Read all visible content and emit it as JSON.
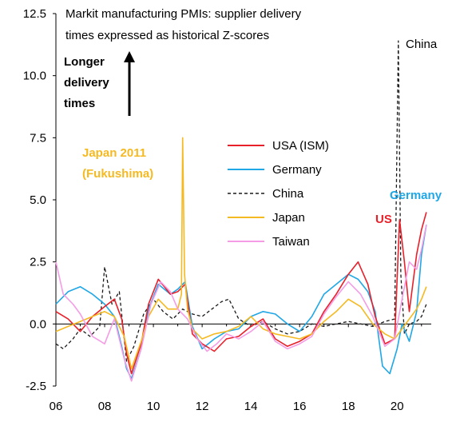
{
  "chart_data": {
    "type": "line",
    "title": "Markit manufacturing PMIs: supplier delivery times expressed as historical Z-scores",
    "title_lines": [
      "Markit manufacturing PMIs: supplier delivery",
      "times expressed as historical Z-scores"
    ],
    "ylim": [
      -2.5,
      12.5
    ],
    "y_ticks": [
      "12.5",
      "10.0",
      "7.5",
      "5.0",
      "2.5",
      "0.0",
      "-2.5"
    ],
    "y_tick_values": [
      12.5,
      10.0,
      7.5,
      5.0,
      2.5,
      0.0,
      -2.5
    ],
    "xlim": [
      2006.0,
      2021.4
    ],
    "x_ticks": [
      "06",
      "08",
      "10",
      "12",
      "14",
      "16",
      "18",
      "20"
    ],
    "x_tick_values": [
      2006,
      2008,
      2010,
      2012,
      2014,
      2016,
      2018,
      2020
    ],
    "legend_position": "middle",
    "arrow_label_lines": [
      "Longer",
      "delivery",
      "times"
    ],
    "annotations": {
      "japan_lines": [
        "Japan 2011",
        "(Fukushima)"
      ],
      "china": "China",
      "germany": "Germany",
      "us": "US"
    },
    "series": [
      {
        "name": "USA (ISM)",
        "color": "#e8202a",
        "dash": false,
        "x": [
          2006.0,
          2006.5,
          2007.0,
          2007.5,
          2008.0,
          2008.4,
          2008.7,
          2008.9,
          2009.1,
          2009.5,
          2009.8,
          2010.2,
          2010.7,
          2011.0,
          2011.3,
          2011.6,
          2012.0,
          2012.5,
          2013.0,
          2013.5,
          2014.0,
          2014.5,
          2015.0,
          2015.5,
          2016.0,
          2016.5,
          2017.0,
          2017.5,
          2018.0,
          2018.4,
          2018.8,
          2019.1,
          2019.5,
          2019.9,
          2020.1,
          2020.3,
          2020.5,
          2020.8,
          2021.0,
          2021.2
        ],
        "y": [
          0.5,
          0.2,
          -0.3,
          0.3,
          0.7,
          1.0,
          0.2,
          -1.2,
          -2.0,
          -0.8,
          0.8,
          1.8,
          1.2,
          1.3,
          1.6,
          -0.4,
          -0.8,
          -1.1,
          -0.6,
          -0.5,
          -0.1,
          0.2,
          -0.6,
          -0.9,
          -0.7,
          -0.4,
          0.5,
          1.2,
          2.0,
          2.5,
          1.6,
          0.3,
          -0.8,
          -0.6,
          4.2,
          2.5,
          0.5,
          2.8,
          3.8,
          4.5
        ]
      },
      {
        "name": "Germany",
        "color": "#1fa7e6",
        "dash": false,
        "x": [
          2006.0,
          2006.5,
          2007.0,
          2007.5,
          2008.0,
          2008.4,
          2008.7,
          2008.9,
          2009.1,
          2009.5,
          2009.8,
          2010.2,
          2010.7,
          2011.0,
          2011.3,
          2011.6,
          2012.0,
          2012.5,
          2013.0,
          2013.5,
          2014.0,
          2014.5,
          2015.0,
          2015.5,
          2016.0,
          2016.5,
          2017.0,
          2017.5,
          2018.0,
          2018.4,
          2018.8,
          2019.1,
          2019.4,
          2019.7,
          2020.0,
          2020.2,
          2020.5,
          2020.8,
          2021.0,
          2021.2
        ],
        "y": [
          0.8,
          1.3,
          1.5,
          1.2,
          0.8,
          0.3,
          -0.9,
          -1.8,
          -2.2,
          -1.0,
          0.6,
          1.6,
          1.2,
          1.4,
          1.7,
          -0.1,
          -1.0,
          -0.6,
          -0.3,
          -0.2,
          0.3,
          0.5,
          0.4,
          0.0,
          -0.3,
          0.3,
          1.2,
          1.6,
          2.0,
          1.8,
          1.3,
          0.5,
          -1.7,
          -2.0,
          -1.0,
          0.0,
          -0.7,
          0.5,
          2.8,
          4.0
        ]
      },
      {
        "name": "China",
        "color": "#1a1a1a",
        "dash": true,
        "x": [
          2006.0,
          2006.3,
          2006.7,
          2007.0,
          2007.4,
          2007.8,
          2008.0,
          2008.3,
          2008.6,
          2008.9,
          2009.2,
          2009.6,
          2010.0,
          2010.4,
          2010.8,
          2011.2,
          2011.6,
          2012.0,
          2012.4,
          2012.8,
          2013.1,
          2013.5,
          2014.0,
          2014.5,
          2015.0,
          2015.5,
          2016.0,
          2016.5,
          2017.0,
          2017.5,
          2018.0,
          2018.5,
          2019.0,
          2019.5,
          2019.9,
          2020.05,
          2020.15,
          2020.3,
          2020.5,
          2020.8,
          2021.0,
          2021.2
        ],
        "y": [
          -0.8,
          -1.0,
          -0.6,
          -0.2,
          -0.5,
          -0.1,
          2.3,
          0.8,
          1.3,
          -1.5,
          -0.9,
          0.4,
          1.0,
          0.5,
          0.2,
          0.6,
          0.4,
          0.3,
          0.6,
          0.9,
          1.0,
          0.2,
          -0.1,
          0.1,
          -0.2,
          -0.4,
          -0.3,
          0.0,
          -0.1,
          0.0,
          0.1,
          0.0,
          -0.1,
          0.1,
          0.2,
          11.4,
          2.0,
          -0.4,
          0.0,
          0.1,
          0.3,
          0.8
        ]
      },
      {
        "name": "Japan",
        "color": "#f5b921",
        "dash": false,
        "x": [
          2006.0,
          2006.5,
          2007.0,
          2007.5,
          2008.0,
          2008.4,
          2008.8,
          2009.1,
          2009.5,
          2009.8,
          2010.2,
          2010.6,
          2011.0,
          2011.15,
          2011.2,
          2011.28,
          2011.4,
          2011.6,
          2012.0,
          2012.5,
          2013.0,
          2013.5,
          2014.0,
          2014.5,
          2015.0,
          2015.5,
          2016.0,
          2016.5,
          2017.0,
          2017.5,
          2018.0,
          2018.5,
          2019.0,
          2019.5,
          2019.9,
          2020.2,
          2020.5,
          2020.8,
          2021.0,
          2021.2
        ],
        "y": [
          -0.3,
          -0.1,
          0.1,
          0.3,
          0.5,
          0.3,
          -0.5,
          -1.8,
          -0.7,
          0.3,
          1.0,
          0.6,
          0.6,
          1.2,
          7.5,
          2.0,
          0.6,
          -0.2,
          -0.6,
          -0.4,
          -0.3,
          -0.1,
          0.3,
          -0.2,
          -0.4,
          -0.5,
          -0.6,
          -0.4,
          0.1,
          0.5,
          1.0,
          0.7,
          0.0,
          -0.4,
          -0.6,
          -0.2,
          0.2,
          0.6,
          1.0,
          1.5
        ]
      },
      {
        "name": "Taiwan",
        "color": "#f49ce6",
        "dash": false,
        "x": [
          2006.0,
          2006.3,
          2006.7,
          2007.0,
          2007.5,
          2008.0,
          2008.4,
          2008.8,
          2009.1,
          2009.5,
          2009.9,
          2010.3,
          2010.7,
          2011.0,
          2011.4,
          2011.8,
          2012.2,
          2012.6,
          2013.0,
          2013.5,
          2014.0,
          2014.5,
          2015.0,
          2015.5,
          2016.0,
          2016.5,
          2017.0,
          2017.5,
          2018.0,
          2018.5,
          2019.0,
          2019.5,
          2019.9,
          2020.2,
          2020.5,
          2020.8,
          2021.0,
          2021.2
        ],
        "y": [
          2.5,
          1.2,
          0.8,
          0.4,
          -0.5,
          -0.8,
          0.2,
          -1.4,
          -2.3,
          -1.0,
          0.8,
          1.7,
          1.3,
          0.6,
          0.2,
          -0.6,
          -1.1,
          -0.8,
          -0.4,
          -0.6,
          -0.3,
          0.1,
          -0.7,
          -1.0,
          -0.8,
          -0.5,
          0.4,
          1.1,
          1.7,
          1.2,
          0.3,
          -0.9,
          -0.6,
          1.0,
          2.5,
          2.2,
          3.0,
          4.0
        ]
      }
    ]
  }
}
